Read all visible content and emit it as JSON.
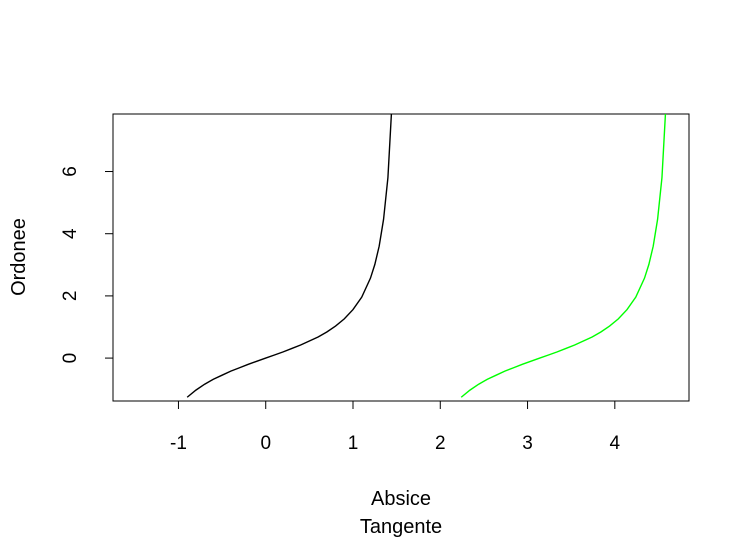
{
  "chart_data": {
    "type": "line",
    "title": "",
    "xlabel": "Absice",
    "ylabel": "Ordonee",
    "sub": "Tangente",
    "xlim": [
      -1.75,
      4.85
    ],
    "ylim": [
      -1.38,
      7.85
    ],
    "xticks": [
      -1,
      0,
      1,
      2,
      3,
      4
    ],
    "yticks": [
      0,
      2,
      4,
      6
    ],
    "grid": false,
    "legend": "none",
    "series": [
      {
        "color": "#000000",
        "x": [
          -0.9,
          -0.8,
          -0.7,
          -0.6,
          -0.5,
          -0.4,
          -0.3,
          -0.2,
          -0.1,
          0,
          0.1,
          0.2,
          0.3,
          0.4,
          0.5,
          0.6,
          0.7,
          0.8,
          0.9,
          1.0,
          1.1,
          1.2,
          1.25,
          1.3,
          1.35,
          1.4,
          1.44
        ],
        "y": [
          -1.26,
          -1.03,
          -0.84,
          -0.68,
          -0.55,
          -0.42,
          -0.31,
          -0.2,
          -0.1,
          0,
          0.1,
          0.2,
          0.31,
          0.42,
          0.55,
          0.68,
          0.84,
          1.03,
          1.26,
          1.56,
          1.96,
          2.57,
          3.01,
          3.6,
          4.46,
          5.8,
          7.85
        ]
      },
      {
        "color": "#00ff00",
        "x": [
          2.24,
          2.34,
          2.44,
          2.54,
          2.64,
          2.74,
          2.84,
          2.94,
          3.04,
          3.14,
          3.24,
          3.34,
          3.44,
          3.54,
          3.64,
          3.74,
          3.84,
          3.94,
          4.04,
          4.14,
          4.24,
          4.34,
          4.39,
          4.44,
          4.49,
          4.54,
          4.58
        ]
      }
    ]
  }
}
